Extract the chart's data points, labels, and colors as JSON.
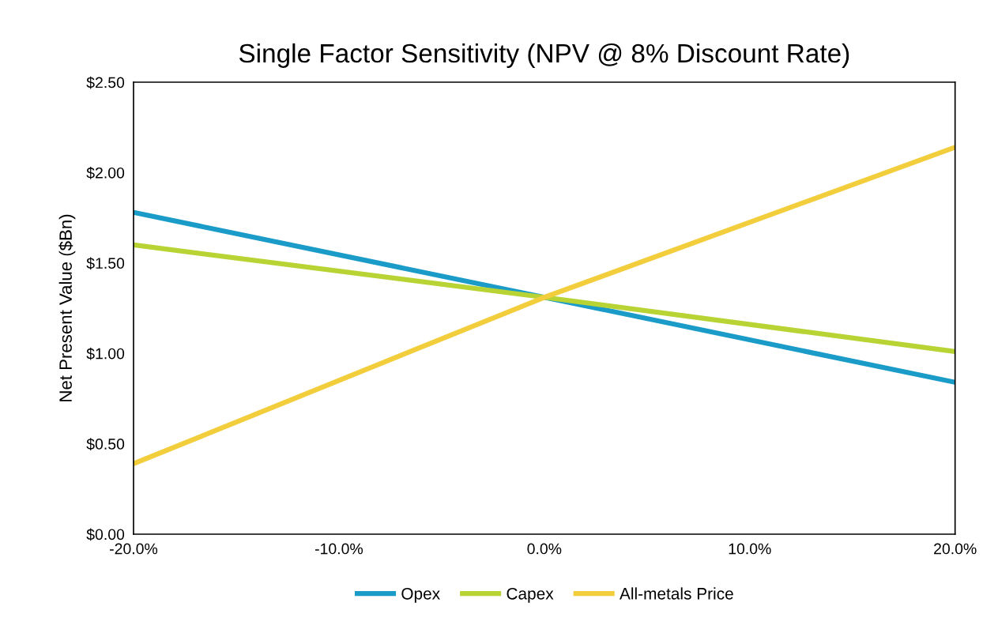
{
  "chart_data": {
    "type": "line",
    "title": "Single Factor Sensitivity (NPV @ 8% Discount Rate)",
    "ylabel": "Net Present Value ($Bn)",
    "x": [
      -20,
      0,
      20
    ],
    "series": [
      {
        "name": "Opex",
        "color": "#1a9bc8",
        "values": [
          1.78,
          1.31,
          0.84
        ]
      },
      {
        "name": "Capex",
        "color": "#b8d334",
        "values": [
          1.6,
          1.31,
          1.01
        ]
      },
      {
        "name": "All-metals Price",
        "color": "#f2cd3c",
        "values": [
          0.39,
          1.31,
          2.14
        ]
      }
    ],
    "xlim": [
      -20,
      20
    ],
    "xticks": [
      {
        "value": -20,
        "label": "-20.0%"
      },
      {
        "value": -10,
        "label": "-10.0%"
      },
      {
        "value": 0,
        "label": "0.0%"
      },
      {
        "value": 10,
        "label": "10.0%"
      },
      {
        "value": 20,
        "label": "20.0%"
      }
    ],
    "ylim": [
      0,
      2.5
    ],
    "yticks": [
      {
        "value": 0,
        "label": "$0.00"
      },
      {
        "value": 0.5,
        "label": "$0.50"
      },
      {
        "value": 1.0,
        "label": "$1.00"
      },
      {
        "value": 1.5,
        "label": "$1.50"
      },
      {
        "value": 2.0,
        "label": "$2.00"
      },
      {
        "value": 2.5,
        "label": "$2.50"
      }
    ],
    "grid": false,
    "legend": "bottom",
    "marker": "none",
    "line_style": "solid"
  }
}
